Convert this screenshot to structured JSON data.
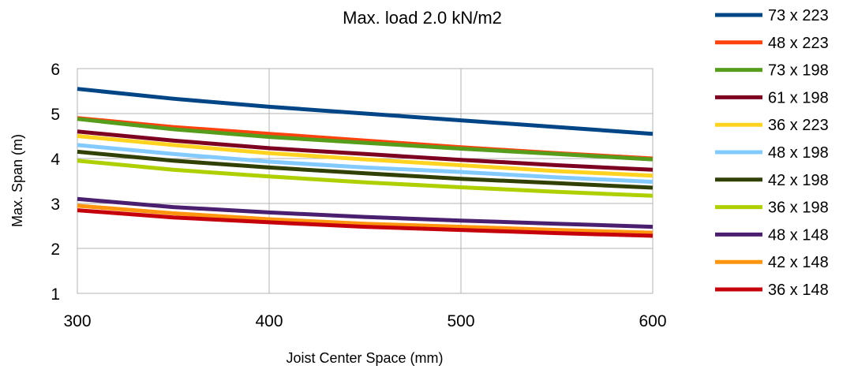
{
  "chart_data": {
    "type": "line",
    "title": "Max. load 2.0 kN/m2",
    "xlabel": "Joist Center Space (mm)",
    "ylabel": "Max. Span (m)",
    "xlim": [
      300,
      600
    ],
    "ylim": [
      1,
      6
    ],
    "xticks": [
      300,
      400,
      500,
      600
    ],
    "yticks": [
      1,
      2,
      3,
      4,
      5,
      6
    ],
    "grid": true,
    "legend_position": "right",
    "x": [
      300,
      350,
      400,
      450,
      500,
      550,
      600
    ],
    "series": [
      {
        "name": "73 x 223",
        "color": "#004586",
        "values": [
          5.55,
          5.33,
          5.15,
          5.0,
          4.85,
          4.7,
          4.55
        ]
      },
      {
        "name": "48 x 223",
        "color": "#ff420e",
        "values": [
          4.9,
          4.7,
          4.55,
          4.4,
          4.25,
          4.12,
          4.0
        ]
      },
      {
        "name": "73 x 198",
        "color": "#579d1c",
        "values": [
          4.88,
          4.65,
          4.48,
          4.35,
          4.22,
          4.1,
          3.98
        ]
      },
      {
        "name": "61 x 198",
        "color": "#7e0021",
        "values": [
          4.6,
          4.4,
          4.23,
          4.1,
          3.97,
          3.85,
          3.75
        ]
      },
      {
        "name": "36 x 223",
        "color": "#ffd320",
        "values": [
          4.5,
          4.3,
          4.12,
          3.98,
          3.85,
          3.72,
          3.62
        ]
      },
      {
        "name": "48 x 198",
        "color": "#83caff",
        "values": [
          4.3,
          4.1,
          3.93,
          3.8,
          3.7,
          3.58,
          3.48
        ]
      },
      {
        "name": "42 x 198",
        "color": "#314004",
        "values": [
          4.15,
          3.95,
          3.8,
          3.67,
          3.55,
          3.45,
          3.35
        ]
      },
      {
        "name": "36 x 198",
        "color": "#aecf00",
        "values": [
          3.95,
          3.75,
          3.6,
          3.47,
          3.36,
          3.26,
          3.17
        ]
      },
      {
        "name": "48 x 148",
        "color": "#4b1f6f",
        "values": [
          3.1,
          2.92,
          2.8,
          2.7,
          2.62,
          2.55,
          2.48
        ]
      },
      {
        "name": "42 x 148",
        "color": "#ff950e",
        "values": [
          2.95,
          2.78,
          2.65,
          2.55,
          2.48,
          2.41,
          2.35
        ]
      },
      {
        "name": "36 x 148",
        "color": "#c5000b",
        "values": [
          2.85,
          2.69,
          2.58,
          2.48,
          2.41,
          2.34,
          2.28
        ]
      }
    ]
  }
}
